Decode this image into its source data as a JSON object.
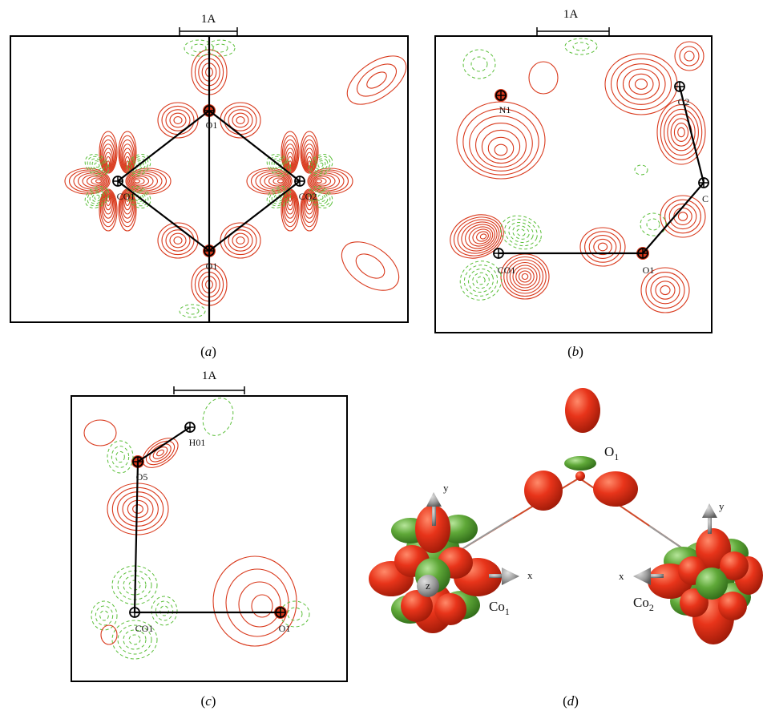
{
  "panels": {
    "a": {
      "caption_letter": "a",
      "scale_label": "1A",
      "atoms": [
        "O1",
        "CO1",
        "CO2",
        "O1"
      ]
    },
    "b": {
      "caption_letter": "b",
      "scale_label": "1A",
      "atoms": [
        "N1",
        "O2",
        "C",
        "CO1",
        "O1"
      ]
    },
    "c": {
      "caption_letter": "c",
      "scale_label": "1A",
      "atoms": [
        "H01",
        "O5",
        "CO1",
        "O1"
      ]
    },
    "d": {
      "caption_letter": "d",
      "labels": {
        "o_main": "O",
        "o_sub": "1",
        "co1_main": "Co",
        "co1_sub": "1",
        "co2_main": "Co",
        "co2_sub": "2"
      },
      "axes": {
        "left_y": "y",
        "left_x": "x",
        "left_z": "z",
        "right_y": "y",
        "right_x": "x"
      }
    }
  },
  "colors": {
    "positive": "#d9391c",
    "negative": "#5bbf3a",
    "lobe_red": "#e8341a",
    "lobe_green": "#5fa838",
    "bond": "#000000",
    "arrow": "#9a9a9a"
  }
}
